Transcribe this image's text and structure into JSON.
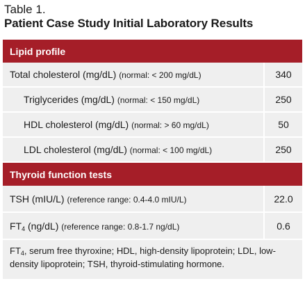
{
  "table_label": "Table 1.",
  "title": "Patient Case Study Initial Laboratory Results",
  "sections": [
    {
      "header": "Lipid profile",
      "rows": [
        {
          "name": "Total cholesterol (mg/dL)",
          "note": "(normal: < 200 mg/dL)",
          "value": "340"
        },
        {
          "name": "Triglycerides (mg/dL)",
          "note": "(normal: < 150 mg/dL)",
          "value": "250"
        },
        {
          "name": "HDL cholesterol (mg/dL)",
          "note": "(normal: > 60 mg/dL)",
          "value": "50"
        },
        {
          "name": "LDL cholesterol (mg/dL)",
          "note": "(normal: < 100 mg/dL)",
          "value": "250"
        }
      ]
    },
    {
      "header": "Thyroid function tests",
      "rows": [
        {
          "name": "TSH (mIU/L)",
          "note": "(reference range: 0.4-4.0 mIU/L)",
          "value": "22.0"
        },
        {
          "name_main": "FT",
          "name_sub": "4",
          "name_rest": " (ng/dL)",
          "note": "(reference range: 0.8-1.7 ng/dL)",
          "value": "0.6"
        }
      ]
    }
  ],
  "footnote": {
    "abbr_main": "FT",
    "abbr_sub": "4",
    "text": ", serum free thyroxine; HDL, high-density lipoprotein; LDL, low-density lipoprotein; TSH, thyroid-stimulating hormone."
  }
}
